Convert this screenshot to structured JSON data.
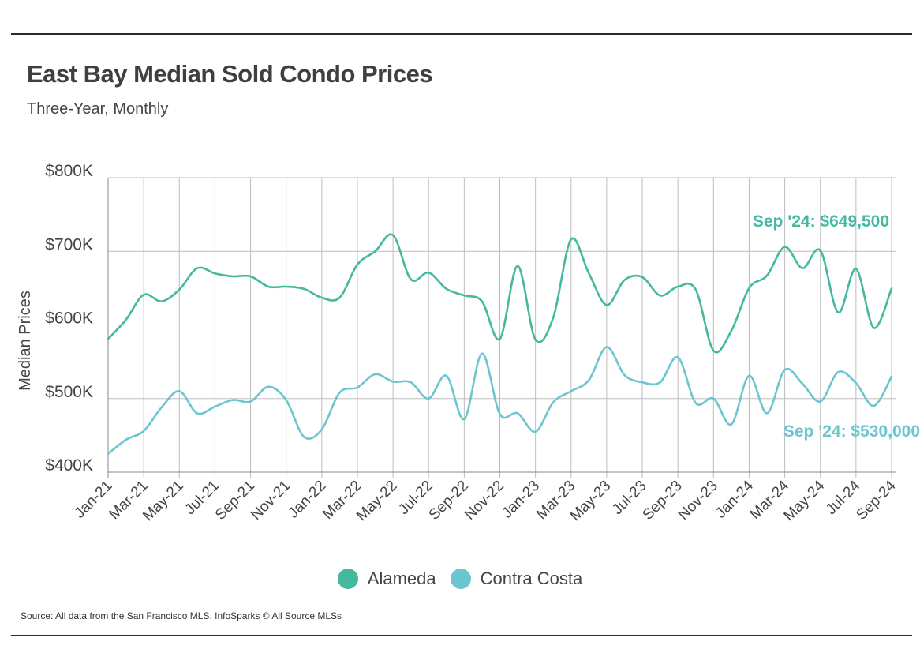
{
  "header": {
    "title": "East Bay Median Sold Condo Prices",
    "subtitle": "Three-Year, Monthly"
  },
  "footer": {
    "source": "Source:  All data from the San Francisco MLS. InfoSparks © All Source MLSs"
  },
  "colors": {
    "alameda": "#45b8a0",
    "contra_costa": "#6cc6cf",
    "grid": "#bdbdbd",
    "axis_text": "#444444"
  },
  "chart_data": {
    "type": "line",
    "title": "East Bay Median Sold Condo Prices",
    "subtitle": "Three-Year, Monthly",
    "ylabel": "Median Prices",
    "xlabel": "",
    "ylim": [
      400000,
      800000
    ],
    "y_ticks": [
      400000,
      500000,
      600000,
      700000,
      800000
    ],
    "y_tick_labels": [
      "$400K",
      "$500K",
      "$600K",
      "$700K",
      "$800K"
    ],
    "grid": true,
    "x": [
      "Jan-21",
      "Feb-21",
      "Mar-21",
      "Apr-21",
      "May-21",
      "Jun-21",
      "Jul-21",
      "Aug-21",
      "Sep-21",
      "Oct-21",
      "Nov-21",
      "Dec-21",
      "Jan-22",
      "Feb-22",
      "Mar-22",
      "Apr-22",
      "May-22",
      "Jun-22",
      "Jul-22",
      "Aug-22",
      "Sep-22",
      "Oct-22",
      "Nov-22",
      "Dec-22",
      "Jan-23",
      "Feb-23",
      "Mar-23",
      "Apr-23",
      "May-23",
      "Jun-23",
      "Jul-23",
      "Aug-23",
      "Sep-23",
      "Oct-23",
      "Nov-23",
      "Dec-23",
      "Jan-24",
      "Feb-24",
      "Mar-24",
      "Apr-24",
      "May-24",
      "Jun-24",
      "Jul-24",
      "Aug-24",
      "Sep-24"
    ],
    "x_tick_labels": [
      "Jan-21",
      "Mar-21",
      "May-21",
      "Jul-21",
      "Sep-21",
      "Nov-21",
      "Jan-22",
      "Mar-22",
      "May-22",
      "Jul-22",
      "Sep-22",
      "Nov-22",
      "Jan-23",
      "Mar-23",
      "May-23",
      "Jul-23",
      "Sep-23",
      "Nov-23",
      "Jan-24",
      "Mar-24",
      "May-24",
      "Jul-24",
      "Sep-24"
    ],
    "series": [
      {
        "name": "Alameda",
        "color": "#45b8a0",
        "values": [
          581000,
          607000,
          641000,
          632000,
          648000,
          677000,
          670000,
          666000,
          666000,
          652000,
          652000,
          649000,
          637000,
          637000,
          682000,
          700000,
          722000,
          662000,
          671000,
          649000,
          640000,
          632000,
          581000,
          680000,
          580000,
          610000,
          716000,
          670000,
          627000,
          661000,
          665000,
          640000,
          652000,
          648000,
          565000,
          592000,
          650000,
          667000,
          706000,
          677000,
          701000,
          617000,
          676000,
          596000,
          649500
        ]
      },
      {
        "name": "Contra Costa",
        "color": "#6cc6cf",
        "values": [
          425000,
          444000,
          456000,
          488000,
          510000,
          480000,
          489000,
          498000,
          496000,
          516000,
          498000,
          448000,
          458000,
          508000,
          515000,
          533000,
          523000,
          522000,
          500000,
          531000,
          472000,
          561000,
          479000,
          480000,
          455000,
          495000,
          510000,
          525000,
          570000,
          532000,
          522000,
          522000,
          556000,
          494000,
          500000,
          465000,
          531000,
          480000,
          539000,
          520000,
          496000,
          536000,
          521000,
          490000,
          530000
        ]
      }
    ],
    "annotations": [
      {
        "series": "Alameda",
        "text": "Sep '24: $649,500"
      },
      {
        "series": "Contra Costa",
        "text": "Sep '24: $530,000"
      }
    ],
    "legend": [
      "Alameda",
      "Contra Costa"
    ],
    "legend_position": "bottom-center"
  }
}
